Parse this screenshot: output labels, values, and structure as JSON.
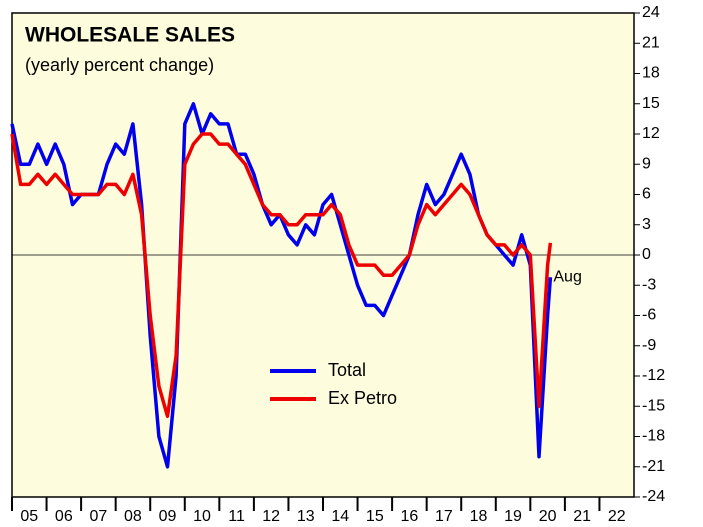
{
  "chart_data": {
    "type": "line",
    "title": "WHOLESALE SALES",
    "subtitle": "(yearly percent change)",
    "annotation": "Aug",
    "x": [
      2005,
      2005.25,
      2005.5,
      2005.75,
      2006,
      2006.25,
      2006.5,
      2006.75,
      2007,
      2007.25,
      2007.5,
      2007.75,
      2008,
      2008.25,
      2008.5,
      2008.75,
      2009,
      2009.25,
      2009.5,
      2009.75,
      2010,
      2010.25,
      2010.5,
      2010.75,
      2011,
      2011.25,
      2011.5,
      2011.75,
      2012,
      2012.25,
      2012.5,
      2012.75,
      2013,
      2013.25,
      2013.5,
      2013.75,
      2014,
      2014.25,
      2014.5,
      2014.75,
      2015,
      2015.25,
      2015.5,
      2015.75,
      2016,
      2016.25,
      2016.5,
      2016.75,
      2017,
      2017.25,
      2017.5,
      2017.75,
      2018,
      2018.25,
      2018.5,
      2018.75,
      2019,
      2019.25,
      2019.5,
      2019.75,
      2020,
      2020.25,
      2020.5,
      2020.58
    ],
    "series": [
      {
        "name": "Total",
        "color": "#0000ee",
        "values": [
          13,
          9,
          9,
          11,
          9,
          11,
          9,
          5,
          6,
          6,
          6,
          9,
          11,
          10,
          13,
          5,
          -8,
          -18,
          -21,
          -12,
          13,
          15,
          12,
          14,
          13,
          13,
          10,
          10,
          8,
          5,
          3,
          4,
          2,
          1,
          3,
          2,
          5,
          6,
          3,
          0,
          -3,
          -5,
          -5,
          -6,
          -4,
          -2,
          0,
          4,
          7,
          5,
          6,
          8,
          10,
          8,
          4,
          2,
          1,
          0,
          -1,
          2,
          -1,
          -20,
          -6,
          -2.2
        ]
      },
      {
        "name": "Ex Petro",
        "color": "#ee0000",
        "values": [
          12,
          7,
          7,
          8,
          7,
          8,
          7,
          6,
          6,
          6,
          6,
          7,
          7,
          6,
          8,
          4,
          -6,
          -13,
          -16,
          -10,
          9,
          11,
          12,
          12,
          11,
          11,
          10,
          9,
          7,
          5,
          4,
          4,
          3,
          3,
          4,
          4,
          4,
          5,
          4,
          1,
          -1,
          -1,
          -1,
          -2,
          -2,
          -1,
          0,
          3,
          5,
          4,
          5,
          6,
          7,
          6,
          4,
          2,
          1,
          1,
          0,
          1,
          0,
          -15,
          -1,
          1.2
        ]
      }
    ],
    "xlim": [
      2005,
      2023
    ],
    "xticks": [
      {
        "value": 2005.5,
        "label": "05"
      },
      {
        "value": 2006.5,
        "label": "06"
      },
      {
        "value": 2007.5,
        "label": "07"
      },
      {
        "value": 2008.5,
        "label": "08"
      },
      {
        "value": 2009.5,
        "label": "09"
      },
      {
        "value": 2010.5,
        "label": "10"
      },
      {
        "value": 2011.5,
        "label": "11"
      },
      {
        "value": 2012.5,
        "label": "12"
      },
      {
        "value": 2013.5,
        "label": "13"
      },
      {
        "value": 2014.5,
        "label": "14"
      },
      {
        "value": 2015.5,
        "label": "15"
      },
      {
        "value": 2016.5,
        "label": "16"
      },
      {
        "value": 2017.5,
        "label": "17"
      },
      {
        "value": 2018.5,
        "label": "18"
      },
      {
        "value": 2019.5,
        "label": "19"
      },
      {
        "value": 2020.5,
        "label": "20"
      },
      {
        "value": 2021.5,
        "label": "21"
      },
      {
        "value": 2022.5,
        "label": "22"
      }
    ],
    "ylim": [
      -24,
      24
    ],
    "yticks": [
      -24,
      -21,
      -18,
      -15,
      -12,
      -9,
      -6,
      -3,
      0,
      3,
      6,
      9,
      12,
      15,
      18,
      21,
      24
    ]
  }
}
